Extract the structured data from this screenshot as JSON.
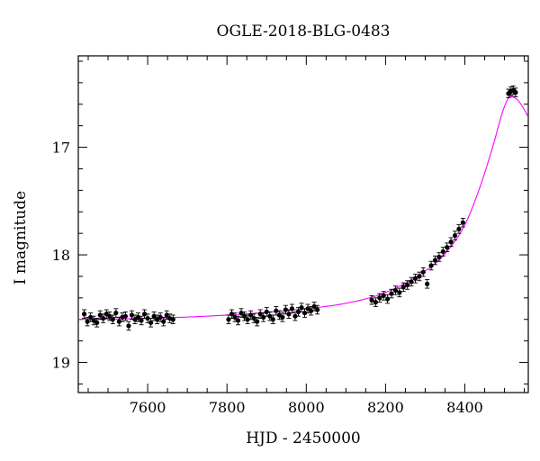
{
  "chart_data": {
    "type": "scatter",
    "title": "OGLE-2018-BLG-0483",
    "xlabel": "HJD - 2450000",
    "ylabel": "I magnitude",
    "xlim": [
      7425,
      8560
    ],
    "ylim": [
      19.28,
      16.15
    ],
    "y_inverted": true,
    "grid": false,
    "x_ticks": [
      7600,
      7800,
      8000,
      8200,
      8400
    ],
    "y_ticks": [
      17,
      18,
      19
    ],
    "colors": {
      "data": "#000000",
      "model": "#ff00ff"
    },
    "model": {
      "name": "",
      "x": [
        7425,
        7600,
        7800,
        8000,
        8100,
        8200,
        8300,
        8350,
        8400,
        8440,
        8470,
        8500,
        8515,
        8530,
        8545,
        8560
      ],
      "y": [
        18.6,
        18.59,
        18.56,
        18.5,
        18.45,
        18.35,
        18.15,
        17.99,
        17.72,
        17.35,
        17.0,
        16.62,
        16.53,
        16.55,
        16.62,
        16.72
      ]
    },
    "series": [
      {
        "name": "",
        "x": [
          7440,
          7448,
          7456,
          7464,
          7472,
          7480,
          7488,
          7496,
          7504,
          7512,
          7520,
          7528,
          7536,
          7544,
          7552,
          7560,
          7568,
          7576,
          7584,
          7592,
          7600,
          7608,
          7616,
          7624,
          7632,
          7640,
          7648,
          7656,
          7664,
          7804,
          7812,
          7820,
          7828,
          7836,
          7844,
          7852,
          7860,
          7868,
          7876,
          7884,
          7892,
          7900,
          7908,
          7916,
          7924,
          7932,
          7940,
          7948,
          7956,
          7964,
          7972,
          7980,
          7988,
          7996,
          8004,
          8012,
          8020,
          8028,
          8165,
          8175,
          8185,
          8195,
          8205,
          8215,
          8225,
          8235,
          8245,
          8255,
          8265,
          8275,
          8285,
          8295,
          8305,
          8315,
          8325,
          8335,
          8345,
          8355,
          8365,
          8375,
          8385,
          8395,
          8510,
          8516,
          8522,
          8528
        ],
        "y": [
          18.55,
          18.62,
          18.58,
          18.61,
          18.63,
          18.56,
          18.59,
          18.55,
          18.57,
          18.6,
          18.54,
          18.62,
          18.58,
          18.57,
          18.66,
          18.56,
          18.6,
          18.58,
          18.61,
          18.55,
          18.59,
          18.63,
          18.57,
          18.6,
          18.58,
          18.62,
          18.56,
          18.59,
          18.6,
          18.6,
          18.55,
          18.58,
          18.61,
          18.54,
          18.57,
          18.6,
          18.56,
          18.59,
          18.62,
          18.55,
          18.58,
          18.53,
          18.57,
          18.6,
          18.52,
          18.56,
          18.58,
          18.51,
          18.55,
          18.5,
          18.57,
          18.53,
          18.49,
          18.54,
          18.5,
          18.52,
          18.48,
          18.51,
          18.42,
          18.44,
          18.4,
          18.38,
          18.41,
          18.36,
          18.33,
          18.35,
          18.3,
          18.28,
          18.25,
          18.22,
          18.2,
          18.16,
          18.27,
          18.1,
          18.05,
          18.02,
          17.97,
          17.93,
          17.88,
          17.82,
          17.76,
          17.7,
          16.5,
          16.48,
          16.47,
          16.49
        ]
      }
    ]
  }
}
